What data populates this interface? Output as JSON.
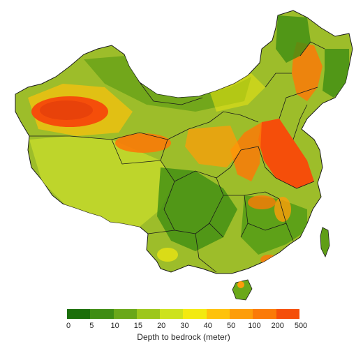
{
  "legend": {
    "title": "Depth to bedrock (meter)",
    "ticks": [
      "0",
      "5",
      "10",
      "15",
      "20",
      "30",
      "40",
      "50",
      "100",
      "200",
      "500"
    ],
    "colors": [
      "#1b6f0a",
      "#3f8d13",
      "#6aa819",
      "#9dc71c",
      "#cde21d",
      "#f3ea10",
      "#fec20c",
      "#fd9d0a",
      "#fb7a08",
      "#f54e0a"
    ]
  },
  "map": {
    "land_base_color": "#9dbd2a",
    "boundary_color": "#1a1a1a",
    "hotspot_colors": [
      "#f54e0a",
      "#fb7a08",
      "#fd9d0a",
      "#fec20c"
    ],
    "lowland_colors": [
      "#3f8d13",
      "#6aa819"
    ]
  }
}
